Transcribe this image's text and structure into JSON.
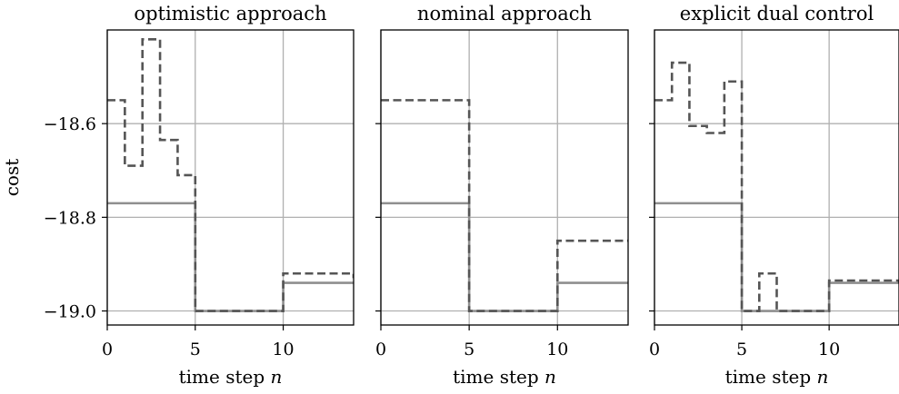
{
  "chart_data": [
    {
      "type": "line",
      "title": "optimistic approach",
      "xlabel": "time step",
      "xlabel_var": "n",
      "ylabel": "cost",
      "xlim": [
        0,
        14
      ],
      "ylim": [
        -19.03,
        -18.4
      ],
      "xticks": [
        0,
        5,
        10
      ],
      "yticks": [
        -18.6,
        -18.8,
        -19.0
      ],
      "yticklabels": [
        "−18.6",
        "−18.8",
        "−19.0"
      ],
      "grid": true,
      "series": [
        {
          "style": "solid",
          "color": "#8f8f8f",
          "step": "post",
          "x": [
            0,
            5,
            10,
            14
          ],
          "y": [
            -18.77,
            -19.0,
            -18.94,
            -18.94
          ]
        },
        {
          "style": "dashed",
          "color": "#555555",
          "step": "post",
          "x": [
            0,
            1,
            2,
            3,
            4,
            5,
            10,
            14
          ],
          "y": [
            -18.55,
            -18.69,
            -18.42,
            -18.635,
            -18.71,
            -19.0,
            -18.92,
            -18.93
          ]
        }
      ]
    },
    {
      "type": "line",
      "title": "nominal approach",
      "xlabel": "time step",
      "xlabel_var": "n",
      "xlim": [
        0,
        14
      ],
      "ylim": [
        -19.03,
        -18.4
      ],
      "xticks": [
        0,
        5,
        10
      ],
      "yticks": [
        -18.6,
        -18.8,
        -19.0
      ],
      "grid": true,
      "series": [
        {
          "style": "solid",
          "color": "#8f8f8f",
          "step": "post",
          "x": [
            0,
            5,
            10,
            14
          ],
          "y": [
            -18.77,
            -19.0,
            -18.94,
            -18.94
          ]
        },
        {
          "style": "dashed",
          "color": "#555555",
          "step": "post",
          "x": [
            0,
            5,
            10,
            14
          ],
          "y": [
            -18.55,
            -19.0,
            -18.85,
            -18.85
          ]
        }
      ]
    },
    {
      "type": "line",
      "title": "explicit dual control",
      "xlabel": "time step",
      "xlabel_var": "n",
      "xlim": [
        0,
        14
      ],
      "ylim": [
        -19.03,
        -18.4
      ],
      "xticks": [
        0,
        5,
        10
      ],
      "yticks": [
        -18.6,
        -18.8,
        -19.0
      ],
      "grid": true,
      "series": [
        {
          "style": "solid",
          "color": "#8f8f8f",
          "step": "post",
          "x": [
            0,
            5,
            10,
            14
          ],
          "y": [
            -18.77,
            -19.0,
            -18.94,
            -18.94
          ]
        },
        {
          "style": "dashed",
          "color": "#555555",
          "step": "post",
          "x": [
            0,
            1,
            2,
            3,
            4,
            5,
            6,
            7,
            10,
            14
          ],
          "y": [
            -18.55,
            -18.47,
            -18.605,
            -18.62,
            -18.51,
            -19.0,
            -18.92,
            -19.0,
            -18.935,
            -18.94
          ]
        }
      ]
    }
  ]
}
